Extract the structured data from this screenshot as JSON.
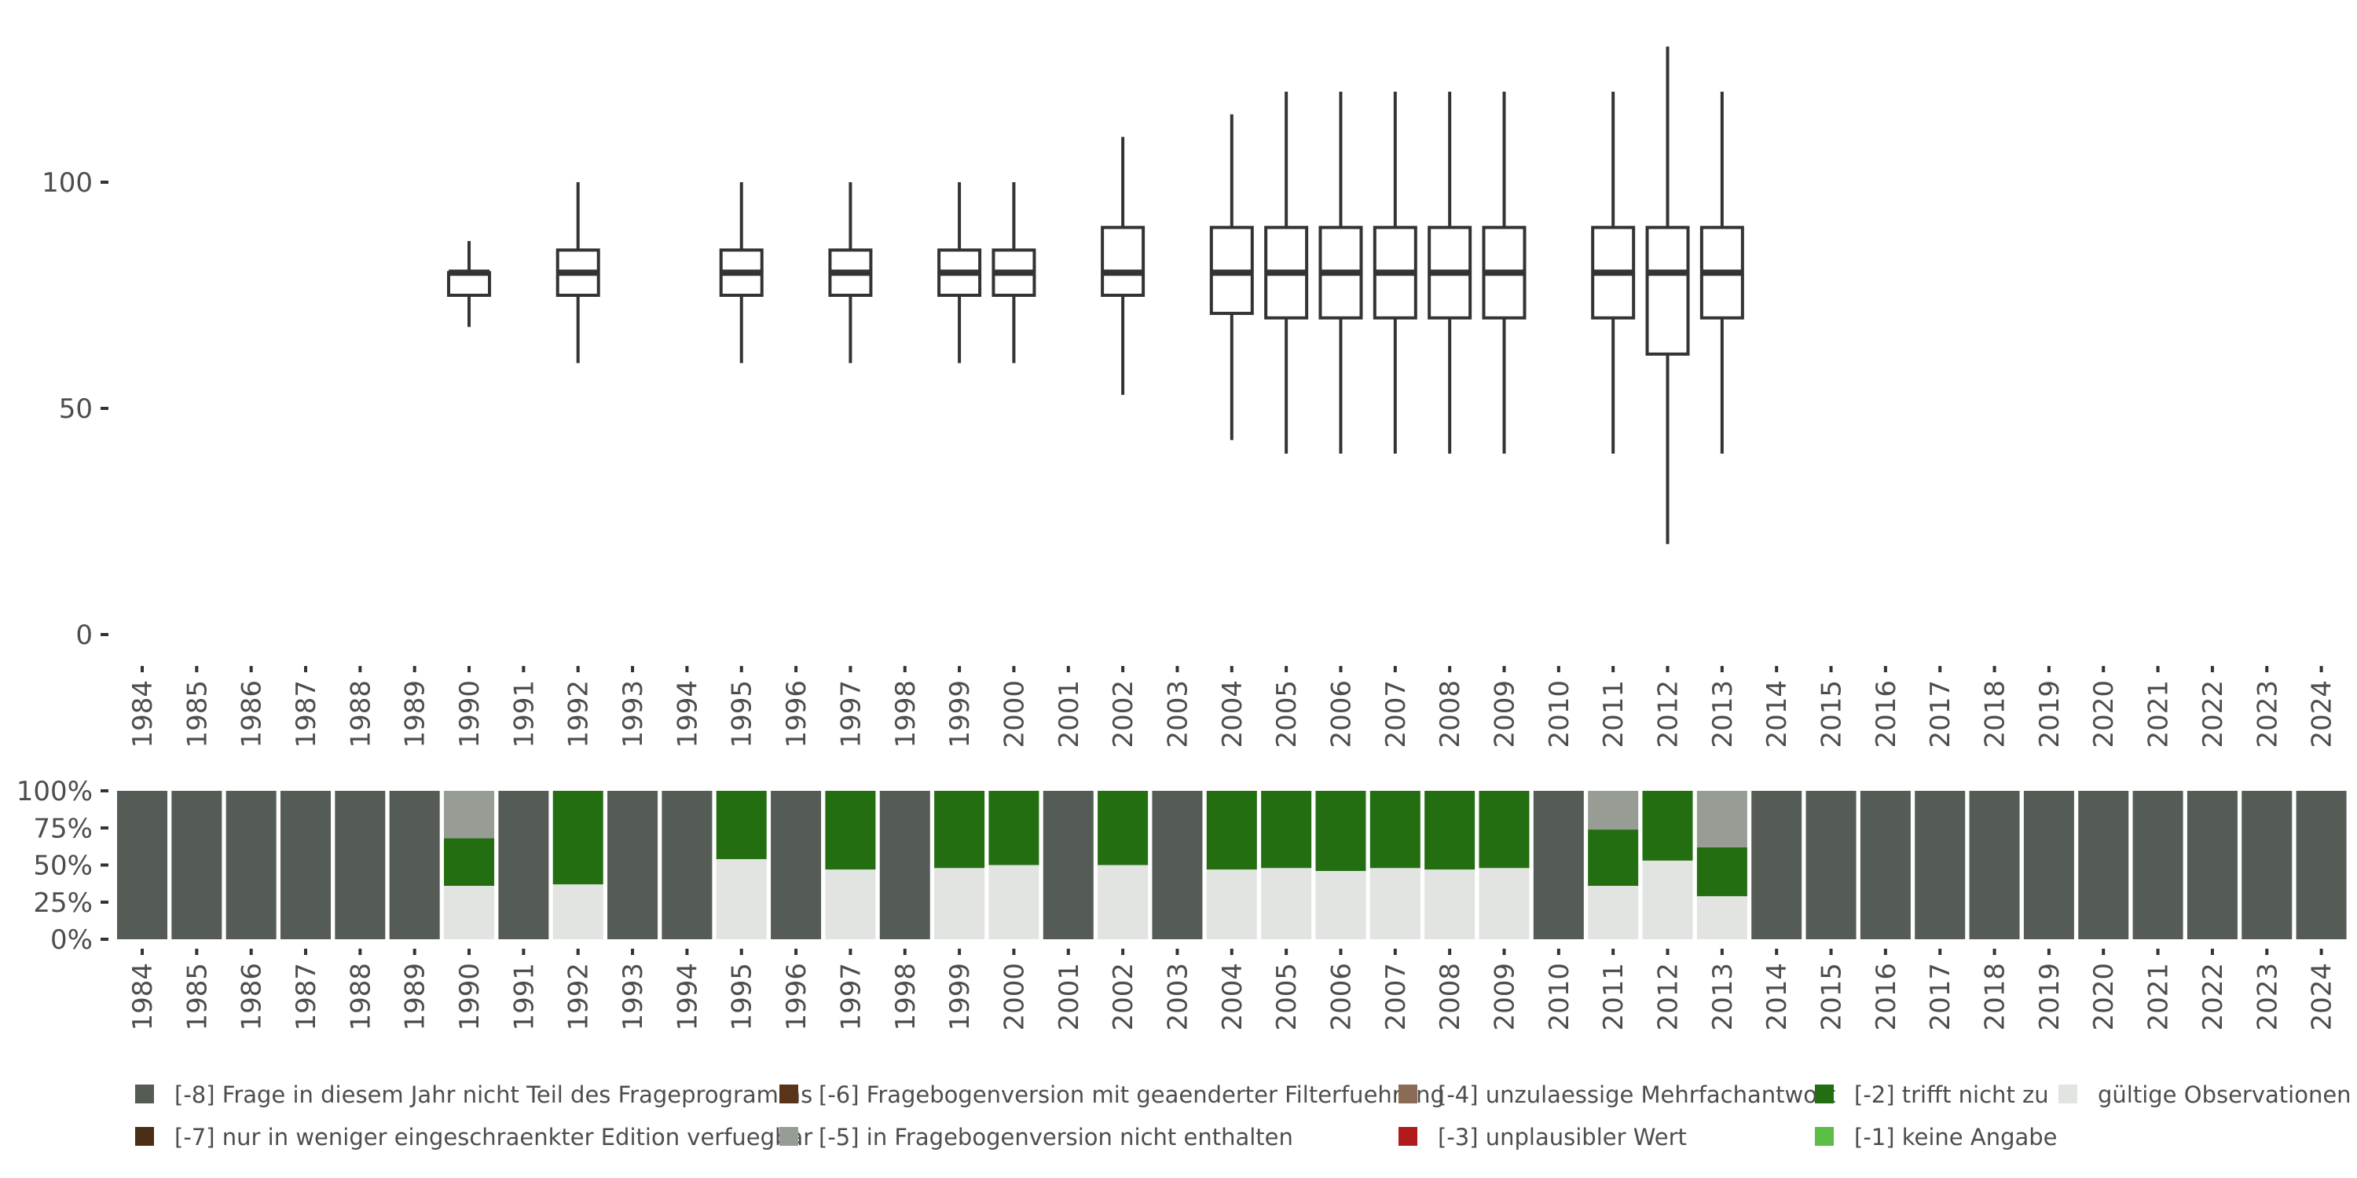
{
  "chart_data": [
    {
      "type": "boxplot",
      "title": "",
      "xlabel": "",
      "ylabel": "",
      "ylim": [
        0,
        130
      ],
      "yticks": [
        0,
        50,
        100
      ],
      "years": [
        "1984",
        "1985",
        "1986",
        "1987",
        "1988",
        "1989",
        "1990",
        "1991",
        "1992",
        "1993",
        "1994",
        "1995",
        "1996",
        "1997",
        "1998",
        "1999",
        "2000",
        "2001",
        "2002",
        "2003",
        "2004",
        "2005",
        "2006",
        "2007",
        "2008",
        "2009",
        "2010",
        "2011",
        "2012",
        "2013",
        "2014",
        "2015",
        "2016",
        "2017",
        "2018",
        "2019",
        "2020",
        "2021",
        "2022",
        "2023",
        "2024"
      ],
      "boxes": [
        {
          "year": "1990",
          "min": 68,
          "q1": 75,
          "median": 80,
          "q3": 80,
          "max": 87
        },
        {
          "year": "1992",
          "min": 60,
          "q1": 75,
          "median": 80,
          "q3": 85,
          "max": 100
        },
        {
          "year": "1995",
          "min": 60,
          "q1": 75,
          "median": 80,
          "q3": 85,
          "max": 100
        },
        {
          "year": "1997",
          "min": 60,
          "q1": 75,
          "median": 80,
          "q3": 85,
          "max": 100
        },
        {
          "year": "1999",
          "min": 60,
          "q1": 75,
          "median": 80,
          "q3": 85,
          "max": 100
        },
        {
          "year": "2000",
          "min": 60,
          "q1": 75,
          "median": 80,
          "q3": 85,
          "max": 100
        },
        {
          "year": "2002",
          "min": 53,
          "q1": 75,
          "median": 80,
          "q3": 90,
          "max": 110
        },
        {
          "year": "2004",
          "min": 43,
          "q1": 71,
          "median": 80,
          "q3": 90,
          "max": 115
        },
        {
          "year": "2005",
          "min": 40,
          "q1": 70,
          "median": 80,
          "q3": 90,
          "max": 120
        },
        {
          "year": "2006",
          "min": 40,
          "q1": 70,
          "median": 80,
          "q3": 90,
          "max": 120
        },
        {
          "year": "2007",
          "min": 40,
          "q1": 70,
          "median": 80,
          "q3": 90,
          "max": 120
        },
        {
          "year": "2008",
          "min": 40,
          "q1": 70,
          "median": 80,
          "q3": 90,
          "max": 120
        },
        {
          "year": "2009",
          "min": 40,
          "q1": 70,
          "median": 80,
          "q3": 90,
          "max": 120
        },
        {
          "year": "2011",
          "min": 40,
          "q1": 70,
          "median": 80,
          "q3": 90,
          "max": 120
        },
        {
          "year": "2012",
          "min": 20,
          "q1": 62,
          "median": 80,
          "q3": 90,
          "max": 130
        },
        {
          "year": "2013",
          "min": 40,
          "q1": 70,
          "median": 80,
          "q3": 90,
          "max": 120
        }
      ]
    },
    {
      "type": "stacked-bar",
      "ylim": [
        0,
        100
      ],
      "yticks": [
        "0%",
        "25%",
        "50%",
        "75%",
        "100%"
      ],
      "years": [
        "1984",
        "1985",
        "1986",
        "1987",
        "1988",
        "1989",
        "1990",
        "1991",
        "1992",
        "1993",
        "1994",
        "1995",
        "1996",
        "1997",
        "1998",
        "1999",
        "2000",
        "2001",
        "2002",
        "2003",
        "2004",
        "2005",
        "2006",
        "2007",
        "2008",
        "2009",
        "2010",
        "2011",
        "2012",
        "2013",
        "2014",
        "2015",
        "2016",
        "2017",
        "2018",
        "2019",
        "2020",
        "2021",
        "2022",
        "2023",
        "2024"
      ],
      "stack_order": [
        "valid",
        "m2",
        "m5",
        "m8"
      ],
      "colors": {
        "m8": "#555b55",
        "m7": "#4a2f16",
        "m6": "#5a3418",
        "m5": "#979c95",
        "m4": "#8b6b55",
        "m3": "#b01c1c",
        "m2": "#236e10",
        "m1": "#5bbf45",
        "valid": "#e1e4e0"
      },
      "series": [
        {
          "key": "valid",
          "name": "gültige Observationen",
          "values": [
            0,
            0,
            0,
            0,
            0,
            0,
            36,
            0,
            37,
            0,
            0,
            54,
            0,
            47,
            0,
            48,
            50,
            0,
            50,
            0,
            47,
            48,
            46,
            48,
            47,
            48,
            0,
            36,
            53,
            29,
            0,
            0,
            0,
            0,
            0,
            0,
            0,
            0,
            0,
            0,
            0
          ]
        },
        {
          "key": "m2",
          "name": "[-2] trifft nicht zu",
          "values": [
            0,
            0,
            0,
            0,
            0,
            0,
            32,
            0,
            63,
            0,
            0,
            46,
            0,
            53,
            0,
            52,
            50,
            0,
            50,
            0,
            53,
            52,
            54,
            52,
            53,
            52,
            0,
            38,
            47,
            33,
            0,
            0,
            0,
            0,
            0,
            0,
            0,
            0,
            0,
            0,
            0
          ]
        },
        {
          "key": "m5",
          "name": "[-5] in Fragebogenversion nicht enthalten",
          "values": [
            0,
            0,
            0,
            0,
            0,
            0,
            32,
            0,
            0,
            0,
            0,
            0,
            0,
            0,
            0,
            0,
            0,
            0,
            0,
            0,
            0,
            0,
            0,
            0,
            0,
            0,
            0,
            26,
            0,
            38,
            0,
            0,
            0,
            0,
            0,
            0,
            0,
            0,
            0,
            0,
            0
          ]
        },
        {
          "key": "m8",
          "name": "[-8] Frage in diesem Jahr nicht Teil des Frageprogramms",
          "values": [
            100,
            100,
            100,
            100,
            100,
            100,
            0,
            100,
            0,
            100,
            100,
            0,
            100,
            0,
            100,
            0,
            0,
            100,
            0,
            100,
            0,
            0,
            0,
            0,
            0,
            0,
            100,
            0,
            0,
            0,
            100,
            100,
            100,
            100,
            100,
            100,
            100,
            100,
            100,
            100,
            100
          ]
        }
      ],
      "legend": [
        {
          "key": "m8",
          "label": "[-8] Frage in diesem Jahr nicht Teil des Frageprogramms"
        },
        {
          "key": "m7",
          "label": "[-7] nur in weniger eingeschraenkter Edition verfuegbar"
        },
        {
          "key": "m6",
          "label": "[-6] Fragebogenversion mit geaenderter Filterfuehrung"
        },
        {
          "key": "m5",
          "label": "[-5] in Fragebogenversion nicht enthalten"
        },
        {
          "key": "m4",
          "label": "[-4] unzulaessige Mehrfachantwort"
        },
        {
          "key": "m3",
          "label": "[-3] unplausibler Wert"
        },
        {
          "key": "m2",
          "label": "[-2] trifft nicht zu"
        },
        {
          "key": "m1",
          "label": "[-1] keine Angabe"
        },
        {
          "key": "valid",
          "label": "gültige Observationen"
        }
      ],
      "legend_position": "bottom"
    }
  ]
}
